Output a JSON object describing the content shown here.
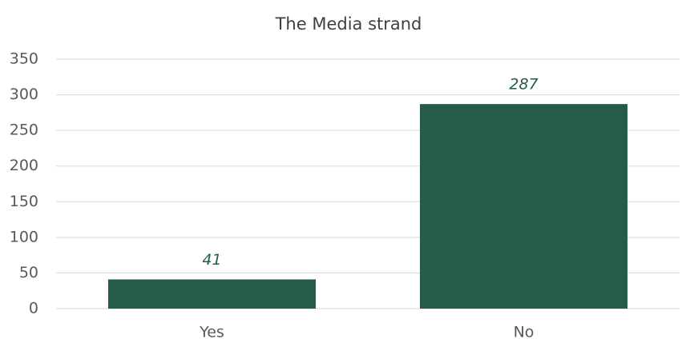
{
  "chart_data": {
    "type": "bar",
    "title": "The Media strand",
    "categories": [
      "Yes",
      "No"
    ],
    "values": [
      41,
      287
    ],
    "color": "#265a4a",
    "ylim": [
      0,
      350
    ],
    "yticks": [
      0,
      50,
      100,
      150,
      200,
      250,
      300,
      350
    ],
    "grid": true
  }
}
